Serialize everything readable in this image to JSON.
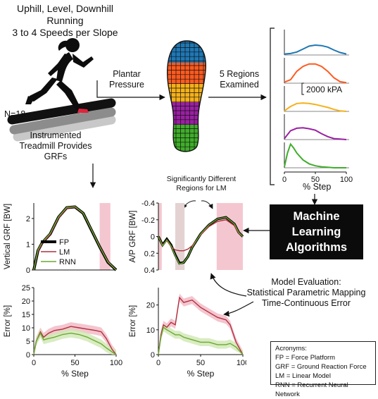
{
  "header": {
    "line1": "Uphill, Level, Downhill Running",
    "line2": "3 to 4 Speeds per Slope"
  },
  "runner": {
    "n_label": "N=18"
  },
  "plantar": {
    "line1": "Plantar",
    "line2": "Pressure"
  },
  "regions": {
    "line1": "5 Regions",
    "line2": "Examined"
  },
  "treadmill": {
    "line1": "Instrumented",
    "line2": "Treadmill Provides",
    "line3": "GRFs"
  },
  "sig": {
    "line1": "Significantly Different",
    "line2": "Regions for LM"
  },
  "ml": {
    "line1": "Machine",
    "line2": "Learning",
    "line3": "Algorithms"
  },
  "evaluation": {
    "line1": "Model Evaluation:",
    "line2": "Statistical Parametric Mapping",
    "line3": "Time-Continuous Error"
  },
  "acronyms": {
    "title": "Acronyms:",
    "items": [
      "FP = Force Platform",
      "GRF = Ground Reaction Force",
      "LM = Linear Model",
      "RNN = Recurrent Neural Network"
    ]
  },
  "colors": {
    "region1": "#1f77b4",
    "region2": "#ff5a1f",
    "region3": "#f5b11a",
    "region4": "#9b1fa3",
    "region5": "#3fae2a",
    "fp": "#000000",
    "lm": "#b0303e",
    "rnn": "#6aa833",
    "shade": "#f4c7d0"
  },
  "chart_data": [
    {
      "type": "line",
      "id": "region-pressure",
      "xlabel": "% Step",
      "x_ticks": [
        "0",
        "50",
        "100"
      ],
      "scale_bar_label": "2000 kPA",
      "series": [
        {
          "color": "#1f77b4",
          "x": [
            0,
            10,
            20,
            30,
            40,
            50,
            60,
            70,
            80,
            90,
            100
          ],
          "y": [
            0.1,
            0.15,
            0.3,
            0.6,
            0.9,
            1.0,
            0.95,
            0.8,
            0.5,
            0.25,
            0.1
          ]
        },
        {
          "color": "#ff5a1f",
          "x": [
            0,
            10,
            20,
            30,
            40,
            50,
            60,
            70,
            80,
            90,
            100
          ],
          "y": [
            0.1,
            0.35,
            1.2,
            1.7,
            1.95,
            1.95,
            1.7,
            1.2,
            0.55,
            0.15,
            0.05
          ]
        },
        {
          "color": "#f5b11a",
          "x": [
            0,
            10,
            20,
            30,
            40,
            50,
            60,
            70,
            80,
            90,
            100
          ],
          "y": [
            0.05,
            0.5,
            0.8,
            0.85,
            0.8,
            0.7,
            0.55,
            0.4,
            0.2,
            0.05,
            0.0
          ]
        },
        {
          "color": "#9b1fa3",
          "x": [
            0,
            10,
            20,
            30,
            40,
            50,
            60,
            70,
            80,
            90,
            100
          ],
          "y": [
            0.1,
            0.9,
            1.15,
            1.2,
            1.1,
            0.95,
            0.6,
            0.3,
            0.1,
            0.05,
            0.0
          ]
        },
        {
          "color": "#3fae2a",
          "x": [
            0,
            5,
            10,
            15,
            20,
            30,
            40,
            50,
            60,
            70,
            80,
            90,
            100
          ],
          "y": [
            0.1,
            1.5,
            2.4,
            2.0,
            1.5,
            0.8,
            0.4,
            0.2,
            0.1,
            0.05,
            0.0,
            0.0,
            0.0
          ]
        }
      ]
    },
    {
      "type": "line",
      "id": "vertical-grf",
      "ylabel": "Vertical GRF [BW]",
      "x_ticks": [
        "0",
        "50",
        "100"
      ],
      "y_ticks": [
        "0",
        "1",
        "2"
      ],
      "ylim": [
        0,
        2.6
      ],
      "xlim": [
        0,
        100
      ],
      "legend": [
        "FP",
        "LM",
        "RNN"
      ],
      "shaded": [
        [
          80,
          93
        ]
      ],
      "series": [
        {
          "name": "FP",
          "x": [
            0,
            5,
            10,
            20,
            30,
            40,
            50,
            60,
            70,
            80,
            90,
            100
          ],
          "y": [
            0.0,
            0.75,
            1.05,
            1.4,
            2.05,
            2.42,
            2.45,
            2.2,
            1.55,
            0.9,
            0.3,
            0.0
          ]
        },
        {
          "name": "LM",
          "x": [
            0,
            5,
            10,
            20,
            30,
            40,
            50,
            60,
            70,
            80,
            90,
            100
          ],
          "y": [
            0.0,
            0.72,
            1.02,
            1.38,
            2.02,
            2.4,
            2.44,
            2.2,
            1.57,
            0.92,
            0.33,
            0.0
          ]
        },
        {
          "name": "RNN",
          "x": [
            0,
            5,
            10,
            20,
            30,
            40,
            50,
            60,
            70,
            80,
            90,
            100
          ],
          "y": [
            0.0,
            0.78,
            1.07,
            1.42,
            2.06,
            2.43,
            2.46,
            2.21,
            1.56,
            0.9,
            0.31,
            0.0
          ]
        }
      ]
    },
    {
      "type": "line",
      "id": "ap-grf",
      "ylabel": "A/P GRF [BW]",
      "x_ticks": [],
      "y_ticks": [
        "-0.4",
        "-0.2",
        "0",
        "0.2",
        "0.4"
      ],
      "ylim": [
        -0.4,
        0.4
      ],
      "y_inverted": true,
      "xlim": [
        0,
        100
      ],
      "shaded": [
        [
          0,
          4
        ],
        [
          20,
          31
        ],
        [
          69,
          100
        ]
      ],
      "series": [
        {
          "name": "FP",
          "x": [
            0,
            5,
            10,
            15,
            20,
            25,
            30,
            35,
            40,
            50,
            60,
            70,
            80,
            90,
            95,
            100
          ],
          "y": [
            0.0,
            0.1,
            0.03,
            0.1,
            0.22,
            0.32,
            0.31,
            0.24,
            0.13,
            -0.03,
            -0.14,
            -0.21,
            -0.23,
            -0.15,
            -0.05,
            0.0
          ]
        },
        {
          "name": "LM",
          "x": [
            0,
            5,
            10,
            15,
            20,
            25,
            30,
            35,
            40,
            50,
            60,
            70,
            80,
            90,
            95,
            100
          ],
          "y": [
            0.0,
            0.1,
            0.05,
            0.12,
            0.16,
            0.17,
            0.17,
            0.15,
            0.11,
            -0.02,
            -0.12,
            -0.18,
            -0.2,
            -0.13,
            -0.04,
            0.0
          ]
        },
        {
          "name": "RNN",
          "x": [
            0,
            5,
            10,
            15,
            20,
            25,
            30,
            35,
            40,
            50,
            60,
            70,
            80,
            90,
            95,
            100
          ],
          "y": [
            0.0,
            0.11,
            0.04,
            0.11,
            0.23,
            0.33,
            0.31,
            0.24,
            0.13,
            -0.03,
            -0.14,
            -0.21,
            -0.23,
            -0.15,
            -0.05,
            0.0
          ]
        }
      ]
    },
    {
      "type": "line",
      "id": "vertical-error",
      "ylabel": "Error [%]",
      "xlabel": "% Step",
      "x_ticks": [
        "0",
        "50",
        "100"
      ],
      "y_ticks": [
        "0",
        "5",
        "10",
        "15",
        "20",
        "25"
      ],
      "ylim": [
        0,
        25
      ],
      "xlim": [
        0,
        100
      ],
      "series": [
        {
          "name": "LM",
          "x": [
            0,
            3,
            8,
            12,
            18,
            25,
            35,
            45,
            55,
            65,
            75,
            82,
            88,
            95,
            100
          ],
          "y": [
            0,
            5,
            8.5,
            6.5,
            8,
            9,
            9.5,
            10.5,
            10,
            9.5,
            9,
            8.5,
            6,
            2,
            0
          ]
        },
        {
          "name": "RNN",
          "x": [
            0,
            3,
            8,
            12,
            18,
            25,
            35,
            45,
            55,
            65,
            75,
            82,
            88,
            95,
            100
          ],
          "y": [
            0,
            5,
            8,
            5.5,
            6,
            6.5,
            7.5,
            8,
            7.5,
            6.5,
            5,
            4,
            2.5,
            1,
            0
          ]
        }
      ]
    },
    {
      "type": "line",
      "id": "ap-error",
      "ylabel": "Error [%]",
      "xlabel": "% Step",
      "x_ticks": [
        "0",
        "50",
        "100"
      ],
      "y_ticks": [
        "0",
        "10",
        "20"
      ],
      "ylim": [
        0,
        27
      ],
      "xlim": [
        0,
        100
      ],
      "series": [
        {
          "name": "LM",
          "x": [
            0,
            3,
            6,
            10,
            15,
            20,
            25,
            30,
            40,
            50,
            60,
            70,
            80,
            85,
            92,
            100
          ],
          "y": [
            0,
            8,
            12,
            11,
            13,
            12,
            23,
            21,
            22,
            19,
            17,
            15,
            14,
            12,
            5,
            0
          ]
        },
        {
          "name": "RNN",
          "x": [
            0,
            3,
            6,
            10,
            15,
            20,
            25,
            30,
            40,
            50,
            60,
            70,
            80,
            85,
            92,
            100
          ],
          "y": [
            0,
            7,
            11,
            10,
            9,
            8,
            8,
            7,
            6,
            5,
            5,
            4,
            4,
            4.5,
            3,
            0
          ]
        }
      ]
    }
  ]
}
